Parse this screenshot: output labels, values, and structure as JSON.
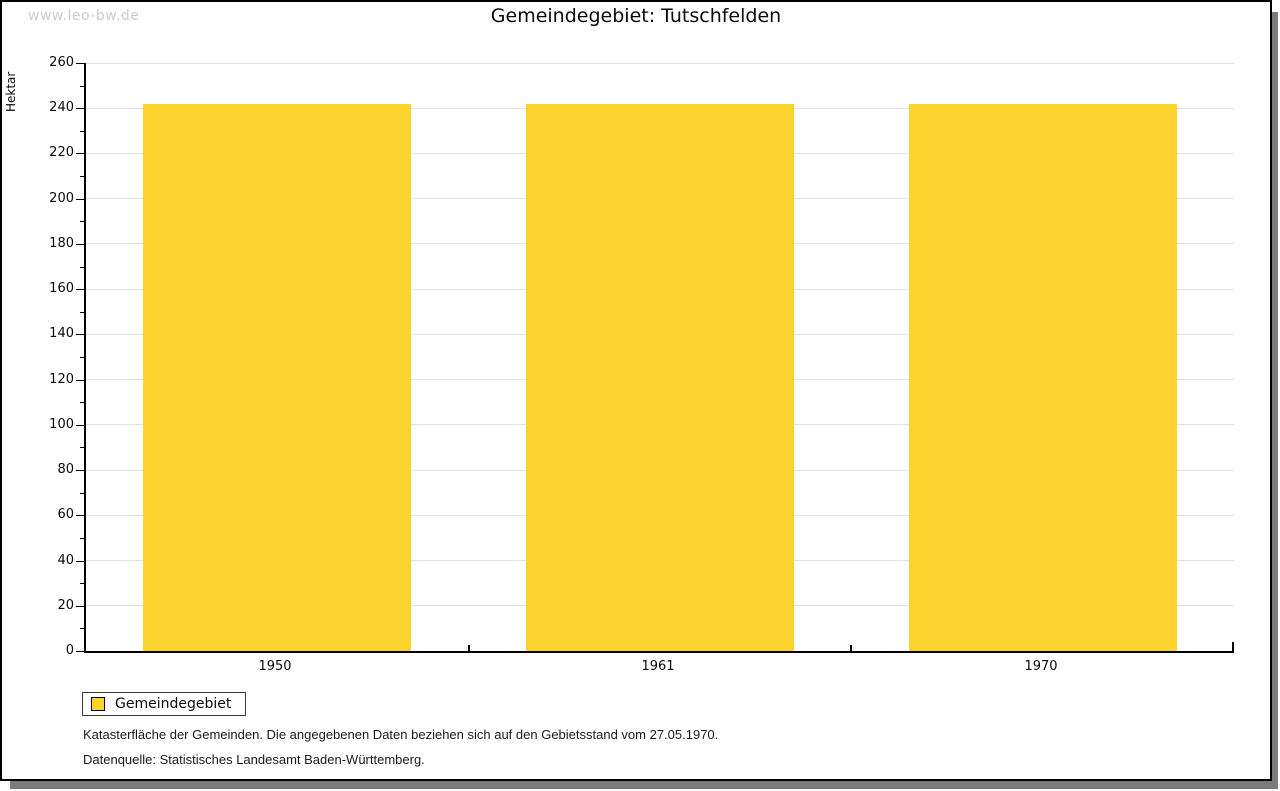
{
  "watermark": "www.leo-bw.de",
  "chart_data": {
    "type": "bar",
    "title": "Gemeindegebiet: Tutschfelden",
    "categories": [
      "1950",
      "1961",
      "1970"
    ],
    "series": [
      {
        "name": "Gemeindegebiet",
        "values": [
          242,
          242,
          242
        ]
      }
    ],
    "xlabel": "",
    "ylabel": "Hektar",
    "ylim": [
      0,
      260
    ],
    "ytick_step": 20,
    "yticks": [
      0,
      20,
      40,
      60,
      80,
      100,
      120,
      140,
      160,
      180,
      200,
      220,
      240,
      260
    ],
    "grid": true,
    "bar_color": "#fcd32d",
    "legend_position": "bottom-left"
  },
  "legend": {
    "items": [
      {
        "label": "Gemeindegebiet",
        "color": "#fcd32d"
      }
    ]
  },
  "footnotes": [
    "Katasterfläche der Gemeinden. Die angegebenen Daten beziehen sich auf den Gebietsstand vom 27.05.1970.",
    "Datenquelle: Statistisches Landesamt Baden-Württemberg."
  ],
  "colors": {
    "bar": "#fcd32d",
    "gridline": "#e2e2e2",
    "axis": "#000000",
    "watermark": "#cccccc",
    "frame_shadow": "#7b7b7b"
  }
}
